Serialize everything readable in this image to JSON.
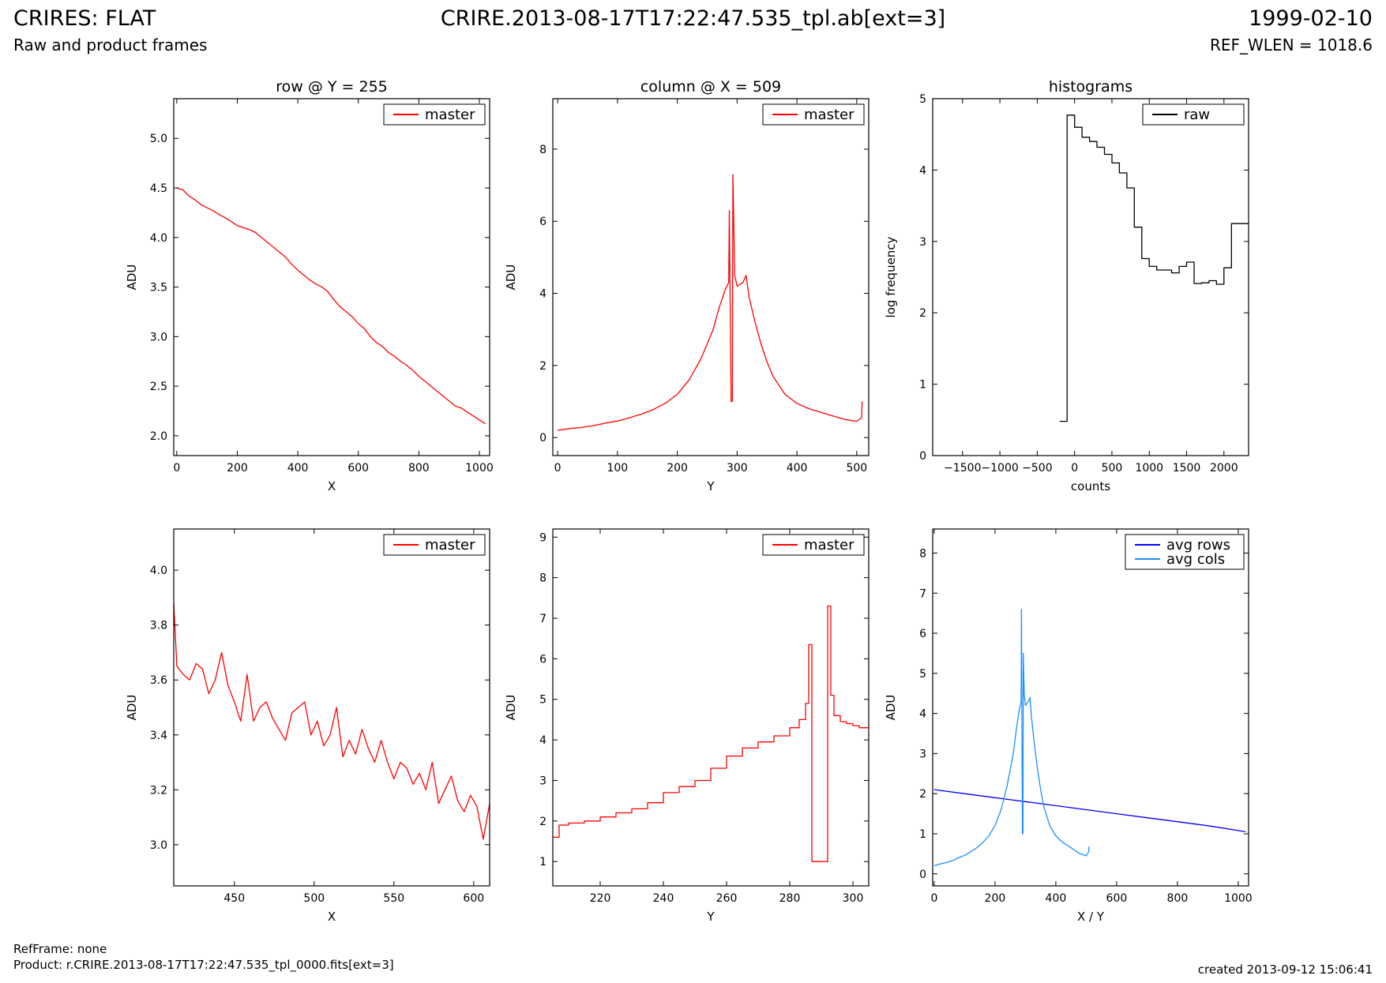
{
  "header": {
    "title": "CRIRES: FLAT",
    "subtitle": "Raw and product frames",
    "file": "CRIRE.2013-08-17T17:22:47.535_tpl.ab[ext=3]",
    "date": "1999-02-10",
    "ref_wlen": "REF_WLEN = 1018.6"
  },
  "footer": {
    "refframe": "RefFrame: none",
    "product": "Product: r.CRIRE.2013-08-17T17:22:47.535_tpl_0000.fits[ext=3]",
    "created": "created 2013-09-12 15:06:41"
  },
  "colors": {
    "master": "#ff0000",
    "raw": "#000000",
    "avg_rows": "#0000ff",
    "avg_cols": "#1e90ff"
  },
  "chart_data": [
    {
      "type": "line",
      "title": "row @ Y = 255",
      "xlabel": "X",
      "ylabel": "ADU",
      "xlim": [
        -10,
        1034
      ],
      "ylim": [
        1.8,
        5.4
      ],
      "xticks": [
        0,
        200,
        400,
        600,
        800,
        1000
      ],
      "yticks": [
        2.0,
        2.5,
        3.0,
        3.5,
        4.0,
        4.5,
        5.0
      ],
      "ytick_labels": [
        "2.0",
        "2.5",
        "3.0",
        "3.5",
        "4.0",
        "4.5",
        "5.0"
      ],
      "series": [
        {
          "name": "master",
          "color": "#ff0000",
          "x": [
            0,
            20,
            40,
            60,
            80,
            100,
            120,
            140,
            160,
            180,
            200,
            220,
            240,
            260,
            280,
            300,
            320,
            340,
            360,
            380,
            400,
            420,
            440,
            460,
            480,
            500,
            520,
            540,
            560,
            580,
            600,
            620,
            640,
            660,
            680,
            700,
            720,
            740,
            760,
            780,
            800,
            820,
            840,
            860,
            880,
            900,
            920,
            940,
            960,
            980,
            1000,
            1020
          ],
          "y": [
            4.5,
            4.48,
            4.42,
            4.38,
            4.33,
            4.3,
            4.27,
            4.23,
            4.2,
            4.16,
            4.12,
            4.1,
            4.08,
            4.05,
            4.0,
            3.95,
            3.9,
            3.85,
            3.8,
            3.73,
            3.67,
            3.62,
            3.57,
            3.53,
            3.5,
            3.45,
            3.37,
            3.3,
            3.25,
            3.2,
            3.13,
            3.08,
            3.0,
            2.94,
            2.9,
            2.84,
            2.8,
            2.75,
            2.71,
            2.66,
            2.6,
            2.55,
            2.5,
            2.45,
            2.4,
            2.35,
            2.3,
            2.28,
            2.24,
            2.2,
            2.16,
            2.12
          ]
        }
      ],
      "legend": "top-right"
    },
    {
      "type": "line",
      "title": "column @ X = 509",
      "xlabel": "Y",
      "ylabel": "ADU",
      "xlim": [
        -8,
        520
      ],
      "ylim": [
        -0.5,
        9.4
      ],
      "xticks": [
        0,
        100,
        200,
        300,
        400,
        500
      ],
      "yticks": [
        0,
        2,
        4,
        6,
        8
      ],
      "series": [
        {
          "name": "master",
          "color": "#ff0000",
          "x": [
            0,
            20,
            40,
            60,
            80,
            100,
            120,
            140,
            160,
            180,
            200,
            220,
            240,
            250,
            260,
            270,
            280,
            286,
            287,
            290,
            292,
            293,
            296,
            300,
            310,
            315,
            320,
            330,
            340,
            350,
            360,
            380,
            400,
            420,
            440,
            460,
            480,
            500,
            508,
            509
          ],
          "y": [
            0.2,
            0.25,
            0.28,
            0.33,
            0.4,
            0.46,
            0.55,
            0.65,
            0.78,
            0.95,
            1.2,
            1.6,
            2.2,
            2.6,
            3.0,
            3.6,
            4.1,
            4.3,
            6.3,
            1.0,
            1.0,
            7.3,
            4.5,
            4.2,
            4.3,
            4.5,
            3.9,
            3.2,
            2.6,
            2.1,
            1.7,
            1.2,
            0.95,
            0.8,
            0.7,
            0.6,
            0.5,
            0.45,
            0.55,
            1.0
          ]
        }
      ],
      "legend": "top-right"
    },
    {
      "type": "line",
      "title": "histograms",
      "xlabel": "counts",
      "ylabel": "log frequency",
      "xlim": [
        -1900,
        2330
      ],
      "ylim": [
        0,
        5
      ],
      "xticks": [
        -1500,
        -1000,
        -500,
        0,
        500,
        1000,
        1500,
        2000
      ],
      "xtick_labels": [
        "−1500",
        "−1000",
        "−500",
        "0",
        "500",
        "1000",
        "1500",
        "2000"
      ],
      "yticks": [
        0,
        1,
        2,
        3,
        4,
        5
      ],
      "series": [
        {
          "name": "raw",
          "color": "#000000",
          "step": true,
          "x": [
            -200,
            -100,
            0,
            100,
            200,
            300,
            400,
            500,
            600,
            700,
            800,
            900,
            1000,
            1100,
            1200,
            1300,
            1400,
            1500,
            1600,
            1700,
            1800,
            1900,
            2000,
            2100,
            2200,
            2330
          ],
          "y": [
            0.48,
            4.77,
            4.6,
            4.46,
            4.4,
            4.32,
            4.22,
            4.1,
            3.96,
            3.75,
            3.2,
            2.76,
            2.65,
            2.6,
            2.6,
            2.56,
            2.65,
            2.71,
            2.41,
            2.42,
            2.45,
            2.4,
            2.63,
            3.25,
            3.25,
            3.25
          ]
        }
      ],
      "legend": "top-right"
    },
    {
      "type": "line",
      "title": "",
      "xlabel": "X",
      "ylabel": "ADU",
      "xlim": [
        412,
        610
      ],
      "ylim": [
        2.85,
        4.15
      ],
      "xticks": [
        450,
        500,
        550,
        600
      ],
      "yticks": [
        3.0,
        3.2,
        3.4,
        3.6,
        3.8,
        4.0
      ],
      "ytick_labels": [
        "3.0",
        "3.2",
        "3.4",
        "3.6",
        "3.8",
        "4.0"
      ],
      "series": [
        {
          "name": "master",
          "color": "#ff0000",
          "x": [
            412,
            414,
            418,
            422,
            426,
            430,
            434,
            438,
            442,
            446,
            450,
            454,
            458,
            462,
            466,
            470,
            474,
            478,
            482,
            486,
            490,
            494,
            498,
            502,
            506,
            510,
            514,
            518,
            522,
            526,
            530,
            534,
            538,
            542,
            546,
            550,
            554,
            558,
            562,
            566,
            570,
            574,
            578,
            582,
            586,
            590,
            594,
            598,
            602,
            606,
            610
          ],
          "y": [
            3.88,
            3.65,
            3.62,
            3.6,
            3.66,
            3.64,
            3.55,
            3.6,
            3.7,
            3.58,
            3.52,
            3.45,
            3.62,
            3.45,
            3.5,
            3.52,
            3.46,
            3.42,
            3.38,
            3.48,
            3.5,
            3.52,
            3.4,
            3.45,
            3.36,
            3.4,
            3.5,
            3.32,
            3.38,
            3.33,
            3.42,
            3.35,
            3.3,
            3.38,
            3.3,
            3.24,
            3.3,
            3.28,
            3.22,
            3.26,
            3.2,
            3.3,
            3.15,
            3.2,
            3.25,
            3.16,
            3.12,
            3.18,
            3.14,
            3.02,
            3.15
          ]
        }
      ],
      "legend": "top-right"
    },
    {
      "type": "line",
      "title": "",
      "xlabel": "Y",
      "ylabel": "ADU",
      "xlim": [
        205,
        305
      ],
      "ylim": [
        0.4,
        9.2
      ],
      "xticks": [
        220,
        240,
        260,
        280,
        300
      ],
      "yticks": [
        1,
        2,
        3,
        4,
        5,
        6,
        7,
        8,
        9
      ],
      "series": [
        {
          "name": "master",
          "color": "#ff0000",
          "step": true,
          "x": [
            205,
            207,
            210,
            215,
            220,
            225,
            230,
            235,
            240,
            245,
            250,
            255,
            260,
            265,
            270,
            275,
            280,
            283,
            285,
            286,
            287,
            290,
            291,
            292,
            293,
            294,
            296,
            298,
            300,
            302,
            305
          ],
          "y": [
            1.6,
            1.9,
            1.95,
            2.0,
            2.1,
            2.2,
            2.3,
            2.45,
            2.7,
            2.85,
            3.0,
            3.3,
            3.6,
            3.8,
            3.95,
            4.1,
            4.3,
            4.5,
            4.9,
            6.35,
            1.0,
            1.0,
            1.0,
            7.3,
            5.1,
            4.6,
            4.45,
            4.4,
            4.35,
            4.3,
            4.3
          ]
        }
      ],
      "legend": "top-right"
    },
    {
      "type": "line",
      "title": "",
      "xlabel": "X / Y",
      "ylabel": "ADU",
      "xlim": [
        -5,
        1034
      ],
      "ylim": [
        -0.3,
        8.6
      ],
      "xticks": [
        0,
        200,
        400,
        600,
        800,
        1000
      ],
      "yticks": [
        0,
        1,
        2,
        3,
        4,
        5,
        6,
        7,
        8
      ],
      "series": [
        {
          "name": "avg rows",
          "color": "#0000ff",
          "x": [
            0,
            100,
            200,
            300,
            400,
            500,
            600,
            700,
            800,
            900,
            1000,
            1024
          ],
          "y": [
            2.1,
            2.0,
            1.9,
            1.8,
            1.7,
            1.6,
            1.5,
            1.4,
            1.3,
            1.2,
            1.08,
            1.05
          ]
        },
        {
          "name": "avg cols",
          "color": "#1e90ff",
          "x": [
            0,
            20,
            40,
            60,
            80,
            100,
            120,
            140,
            160,
            180,
            200,
            220,
            240,
            250,
            260,
            270,
            280,
            286,
            287,
            290,
            292,
            293,
            296,
            300,
            310,
            315,
            320,
            330,
            340,
            350,
            360,
            380,
            400,
            420,
            440,
            460,
            480,
            500,
            508,
            509
          ],
          "y": [
            0.2,
            0.25,
            0.28,
            0.33,
            0.4,
            0.46,
            0.55,
            0.65,
            0.78,
            0.95,
            1.2,
            1.6,
            2.2,
            2.6,
            3.0,
            3.6,
            4.1,
            4.3,
            6.6,
            1.0,
            1.0,
            5.5,
            4.5,
            4.2,
            4.3,
            4.4,
            3.9,
            3.2,
            2.6,
            2.1,
            1.7,
            1.2,
            0.95,
            0.8,
            0.7,
            0.6,
            0.5,
            0.45,
            0.55,
            0.68
          ]
        }
      ],
      "legend": "top-right"
    }
  ]
}
